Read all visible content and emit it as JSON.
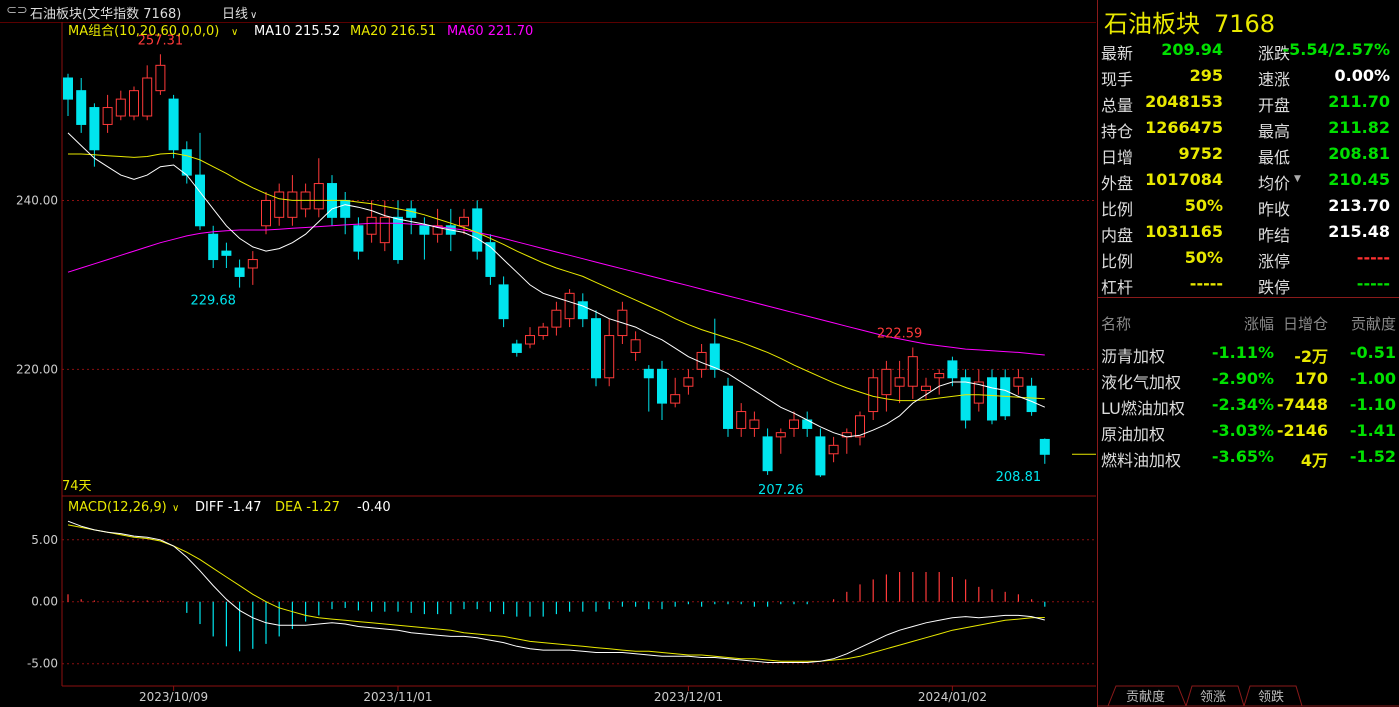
{
  "window": {
    "title": "石油板块(文华指数 7168)",
    "period": "日线",
    "period_caret": "∨"
  },
  "colors": {
    "up": "#ff3a3a",
    "down": "#00e5ee",
    "ma10": "#ffffff",
    "ma20": "#e8e800",
    "ma60": "#ff00ff",
    "grid": "#8b1010"
  },
  "chart_data": [
    {
      "type": "candlestick",
      "indicator_label": "MA组合(10,20,60,0,0,0)",
      "ma_labels": {
        "ma10": "MA10 215.52",
        "ma20": "MA20 216.51",
        "ma60": "MA60 221.70"
      },
      "y_ticks": [
        "240.00",
        "220.00"
      ],
      "y_tick_values": [
        240,
        220
      ],
      "ylim": [
        205,
        259
      ],
      "x_ticks": [
        "2023/10/09",
        "2023/11/01",
        "2023/12/01",
        "2024/01/02"
      ],
      "x_tick_index": [
        8,
        25,
        47,
        67
      ],
      "days_label": "74天",
      "annotations": [
        {
          "text": "257.31",
          "index": 7,
          "value": 257.31,
          "kind": "high"
        },
        {
          "text": "229.68",
          "index": 11,
          "value": 229.68,
          "kind": "low"
        },
        {
          "text": "222.59",
          "index": 63,
          "value": 222.59,
          "kind": "high"
        },
        {
          "text": "207.26",
          "index": 54,
          "value": 207.26,
          "kind": "low"
        },
        {
          "text": "208.81",
          "index": 72,
          "value": 208.81,
          "kind": "low"
        }
      ],
      "candles": [
        [
          254.5,
          252,
          255,
          250
        ],
        [
          253,
          249,
          254.5,
          248
        ],
        [
          251,
          246,
          251.5,
          244
        ],
        [
          249,
          251,
          252.5,
          248
        ],
        [
          250,
          252,
          253,
          249.5
        ],
        [
          250,
          253,
          253.5,
          249.5
        ],
        [
          250,
          254.5,
          256,
          249.5
        ],
        [
          253,
          256,
          257.31,
          252.5
        ],
        [
          252,
          246,
          252.5,
          245
        ],
        [
          246,
          243,
          247,
          242
        ],
        [
          243,
          237,
          248,
          236.5
        ],
        [
          236,
          233,
          237,
          232
        ],
        [
          234,
          233.5,
          235,
          232
        ],
        [
          232,
          231,
          233,
          229.68
        ],
        [
          232,
          233,
          234,
          230
        ],
        [
          237,
          240,
          241,
          236
        ],
        [
          238,
          241,
          242,
          237
        ],
        [
          238,
          241,
          243,
          237
        ],
        [
          239,
          241,
          242,
          238
        ],
        [
          239,
          242,
          245,
          238
        ],
        [
          242,
          238,
          243,
          237
        ],
        [
          240,
          238,
          241,
          236
        ],
        [
          237,
          234,
          238,
          233
        ],
        [
          236,
          238,
          240,
          235
        ],
        [
          235,
          238,
          240,
          234
        ],
        [
          238,
          233,
          240,
          232.5
        ],
        [
          239,
          238,
          240,
          236
        ],
        [
          237,
          236,
          238,
          233
        ],
        [
          236,
          237,
          239,
          235
        ],
        [
          237,
          236,
          239,
          234
        ],
        [
          237,
          238,
          239,
          236
        ],
        [
          239,
          234,
          240,
          233
        ],
        [
          235,
          231,
          236,
          230
        ],
        [
          230,
          226,
          231,
          225
        ],
        [
          223,
          222,
          223.5,
          221.5
        ],
        [
          223,
          224,
          225,
          222.5
        ],
        [
          224,
          225,
          225.5,
          223.5
        ],
        [
          225,
          227,
          228,
          224
        ],
        [
          226,
          229,
          229.5,
          225
        ],
        [
          228,
          226,
          229,
          225
        ],
        [
          226,
          219,
          227,
          218
        ],
        [
          219,
          224,
          226,
          218
        ],
        [
          224,
          227,
          228,
          223
        ],
        [
          222,
          223.5,
          224.5,
          221
        ],
        [
          220,
          219,
          220.5,
          215
        ],
        [
          220,
          216,
          221,
          214
        ],
        [
          216,
          217,
          219,
          215.5
        ],
        [
          218,
          219,
          220,
          217
        ],
        [
          220,
          222,
          223,
          219
        ],
        [
          223,
          220,
          226,
          219
        ],
        [
          218,
          213,
          219,
          212
        ],
        [
          213,
          215,
          216,
          212
        ],
        [
          213,
          214,
          215,
          212
        ],
        [
          212,
          208,
          213,
          207.5
        ],
        [
          212,
          212.5,
          213,
          210
        ],
        [
          213,
          214,
          215,
          212
        ],
        [
          214,
          213,
          215,
          212
        ],
        [
          212,
          207.5,
          213,
          207.26
        ],
        [
          210,
          211,
          212,
          209
        ],
        [
          212,
          212.5,
          213,
          210
        ],
        [
          212,
          214.5,
          215,
          211
        ],
        [
          215,
          219,
          220,
          214
        ],
        [
          217,
          220,
          221,
          215
        ],
        [
          218,
          219,
          221,
          216
        ],
        [
          218,
          221.5,
          222.59,
          216.5
        ],
        [
          217.5,
          218,
          219,
          216.5
        ],
        [
          219,
          219.5,
          220,
          217
        ],
        [
          221,
          219,
          221.5,
          218
        ],
        [
          219,
          214,
          220,
          213
        ],
        [
          216,
          218.5,
          220,
          215
        ],
        [
          219,
          214,
          220,
          213.5
        ],
        [
          219,
          214.5,
          220,
          214
        ],
        [
          218,
          219,
          220,
          217
        ],
        [
          218,
          215,
          219,
          214.5
        ],
        [
          211.7,
          209.94,
          211.82,
          208.81
        ]
      ],
      "ma10": [
        248,
        246.5,
        245,
        244,
        243,
        242.5,
        243,
        244,
        244.2,
        243,
        241,
        239,
        237,
        235.5,
        234.5,
        234,
        234.3,
        235,
        236,
        237.5,
        239,
        239.5,
        239.2,
        238.8,
        238.2,
        237.8,
        237.5,
        237.2,
        236.8,
        236.5,
        236.2,
        235.5,
        234.5,
        233,
        231.5,
        230,
        229,
        228.5,
        228,
        227.5,
        226.8,
        226,
        225.5,
        225,
        224.2,
        223.5,
        222.5,
        221.5,
        220.8,
        220.2,
        219.5,
        218.5,
        217.5,
        216.5,
        215.5,
        214.8,
        214,
        213.2,
        212.5,
        212,
        212.2,
        212.8,
        213.5,
        214.5,
        216,
        217,
        218,
        218.5,
        218.5,
        218.2,
        217.8,
        217.5,
        216.8,
        216.2,
        215.52
      ],
      "ma20": [
        245.5,
        245.5,
        245.4,
        245.3,
        245.2,
        245.1,
        245.2,
        245.5,
        245.6,
        245.3,
        244.8,
        244,
        243.2,
        242.3,
        241.5,
        240.8,
        240.2,
        240,
        240,
        240,
        240,
        240,
        239.8,
        239.6,
        239.3,
        239,
        238.7,
        238.3,
        237.8,
        237.3,
        236.8,
        236.2,
        235.5,
        234.8,
        234,
        233.3,
        232.6,
        232,
        231.5,
        231,
        230.3,
        229.6,
        228.9,
        228.2,
        227.5,
        226.8,
        226,
        225.3,
        224.7,
        224.2,
        223.7,
        223.2,
        222.6,
        222,
        221.3,
        220.5,
        219.8,
        219.1,
        218.4,
        217.8,
        217.3,
        216.8,
        216.5,
        216.3,
        216.3,
        216.4,
        216.6,
        216.8,
        217,
        217,
        216.9,
        216.8,
        216.7,
        216.6,
        216.51
      ],
      "ma60": [
        231.5,
        232,
        232.5,
        233,
        233.5,
        234,
        234.5,
        235,
        235.4,
        235.8,
        236.1,
        236.3,
        236.4,
        236.5,
        236.5,
        236.5,
        236.6,
        236.7,
        236.8,
        236.9,
        237,
        237.1,
        237.2,
        237.3,
        237.3,
        237.3,
        237.2,
        237.1,
        236.9,
        236.7,
        236.5,
        236.2,
        235.9,
        235.5,
        235.1,
        234.7,
        234.3,
        233.9,
        233.5,
        233.1,
        232.7,
        232.3,
        231.9,
        231.5,
        231.1,
        230.7,
        230.3,
        229.9,
        229.5,
        229.1,
        228.7,
        228.3,
        227.9,
        227.5,
        227.1,
        226.7,
        226.3,
        225.9,
        225.5,
        225.1,
        224.7,
        224.3,
        223.9,
        223.6,
        223.3,
        223,
        222.8,
        222.6,
        222.4,
        222.3,
        222.2,
        222.1,
        222,
        221.85,
        221.7
      ]
    },
    {
      "type": "macd",
      "indicator_label": "MACD(12,26,9)",
      "diff_label": "DIFF -1.47",
      "dea_label": "DEA -1.27",
      "hist_label": "-0.40",
      "y_ticks": [
        "5.00",
        "0.00",
        "-5.00"
      ],
      "y_tick_values": [
        5,
        0,
        -5
      ],
      "ylim": [
        -6.8,
        7
      ],
      "diff": [
        6.5,
        6.1,
        5.8,
        5.6,
        5.5,
        5.3,
        5.2,
        5,
        4.5,
        3.6,
        2.5,
        1.3,
        0.2,
        -0.7,
        -1.3,
        -1.7,
        -1.9,
        -1.9,
        -1.9,
        -1.8,
        -1.7,
        -1.8,
        -2,
        -2.1,
        -2.2,
        -2.3,
        -2.5,
        -2.6,
        -2.7,
        -2.8,
        -2.8,
        -2.9,
        -3.1,
        -3.3,
        -3.6,
        -3.8,
        -3.9,
        -3.9,
        -3.9,
        -4,
        -4.1,
        -4.1,
        -4.1,
        -4.2,
        -4.3,
        -4.4,
        -4.4,
        -4.4,
        -4.5,
        -4.5,
        -4.6,
        -4.7,
        -4.8,
        -4.9,
        -4.9,
        -4.9,
        -4.9,
        -4.8,
        -4.6,
        -4.2,
        -3.7,
        -3.2,
        -2.7,
        -2.3,
        -2,
        -1.7,
        -1.5,
        -1.3,
        -1.2,
        -1.3,
        -1.2,
        -1.1,
        -1.1,
        -1.2,
        -1.47
      ],
      "dea": [
        6.2,
        6,
        5.8,
        5.6,
        5.4,
        5.2,
        5.1,
        4.9,
        4.5,
        4,
        3.4,
        2.7,
        2,
        1.3,
        0.6,
        0,
        -0.5,
        -0.8,
        -1.1,
        -1.3,
        -1.4,
        -1.5,
        -1.6,
        -1.7,
        -1.8,
        -1.9,
        -2,
        -2.1,
        -2.2,
        -2.3,
        -2.5,
        -2.6,
        -2.7,
        -2.8,
        -3,
        -3.2,
        -3.3,
        -3.4,
        -3.5,
        -3.6,
        -3.7,
        -3.8,
        -3.9,
        -4,
        -4,
        -4.1,
        -4.2,
        -4.3,
        -4.3,
        -4.4,
        -4.5,
        -4.6,
        -4.6,
        -4.7,
        -4.8,
        -4.8,
        -4.8,
        -4.8,
        -4.7,
        -4.6,
        -4.4,
        -4.1,
        -3.8,
        -3.5,
        -3.2,
        -2.9,
        -2.6,
        -2.3,
        -2.1,
        -1.9,
        -1.7,
        -1.5,
        -1.4,
        -1.3,
        -1.27
      ],
      "hist": [
        0.6,
        0.2,
        0.1,
        0,
        0.1,
        0.1,
        0.1,
        0.1,
        0,
        -0.9,
        -1.8,
        -2.8,
        -3.6,
        -4,
        -3.8,
        -3.4,
        -2.8,
        -2.2,
        -1.6,
        -1.1,
        -0.6,
        -0.5,
        -0.7,
        -0.8,
        -0.8,
        -0.8,
        -0.9,
        -1,
        -1,
        -1,
        -0.6,
        -0.6,
        -0.8,
        -1,
        -1.2,
        -1.2,
        -1.2,
        -1,
        -0.8,
        -0.8,
        -0.8,
        -0.6,
        -0.4,
        -0.4,
        -0.6,
        -0.6,
        -0.4,
        -0.2,
        -0.4,
        -0.2,
        -0.2,
        -0.2,
        -0.4,
        -0.4,
        -0.2,
        -0.2,
        -0.2,
        0,
        0.2,
        0.8,
        1.4,
        1.8,
        2.2,
        2.4,
        2.4,
        2.4,
        2.4,
        2,
        1.8,
        1.2,
        1,
        0.8,
        0.6,
        0.2,
        -0.4
      ]
    }
  ],
  "quote": {
    "title": "石油板块",
    "code": "7168",
    "rows": [
      {
        "l1": "最新",
        "v1": "209.94",
        "c1": "grn",
        "l2": "涨跌",
        "v2": "-5.54/2.57%",
        "c2": "grn"
      },
      {
        "l1": "现手",
        "v1": "295",
        "c1": "yel",
        "l2": "速涨",
        "v2": "0.00%",
        "c2": "wht"
      },
      {
        "l1": "总量",
        "v1": "2048153",
        "c1": "yel",
        "l2": "开盘",
        "v2": "211.70",
        "c2": "grn"
      },
      {
        "l1": "持仓",
        "v1": "1266475",
        "c1": "yel",
        "l2": "最高",
        "v2": "211.82",
        "c2": "grn"
      },
      {
        "l1": "日增",
        "v1": "9752",
        "c1": "yel",
        "l2": "最低",
        "v2": "208.81",
        "c2": "grn"
      },
      {
        "l1": "外盘",
        "v1": "1017084",
        "c1": "yel",
        "l2": "均价",
        "v2": "210.45",
        "c2": "grn"
      },
      {
        "l1": "比例",
        "v1": "50%",
        "c1": "yel",
        "l2": "昨收",
        "v2": "213.70",
        "c2": "wht"
      },
      {
        "l1": "内盘",
        "v1": "1031165",
        "c1": "yel",
        "l2": "昨结",
        "v2": "215.48",
        "c2": "wht"
      },
      {
        "l1": "比例",
        "v1": "50%",
        "c1": "yel",
        "l2": "涨停",
        "v2": "-----",
        "c2": "red"
      },
      {
        "l1": "杠杆",
        "v1": "-----",
        "c1": "yel",
        "l2": "跌停",
        "v2": "-----",
        "c2": "grn"
      }
    ],
    "avg_caret": "▼"
  },
  "contrib_table": {
    "headers": [
      "名称",
      "涨幅",
      "日增仓",
      "贡献度"
    ],
    "rows": [
      {
        "name": "沥青加权",
        "chg": "-1.11%",
        "inc": "-2万",
        "contrib": "-0.51"
      },
      {
        "name": "液化气加权",
        "chg": "-2.90%",
        "inc": "170",
        "contrib": "-1.00"
      },
      {
        "name": "LU燃油加权",
        "chg": "-2.34%",
        "inc": "-7448",
        "contrib": "-1.10"
      },
      {
        "name": "原油加权",
        "chg": "-3.03%",
        "inc": "-2146",
        "contrib": "-1.41"
      },
      {
        "name": "燃料油加权",
        "chg": "-3.65%",
        "inc": "4万",
        "contrib": "-1.52"
      }
    ]
  },
  "tabs": [
    "贡献度",
    "领涨",
    "领跌"
  ]
}
